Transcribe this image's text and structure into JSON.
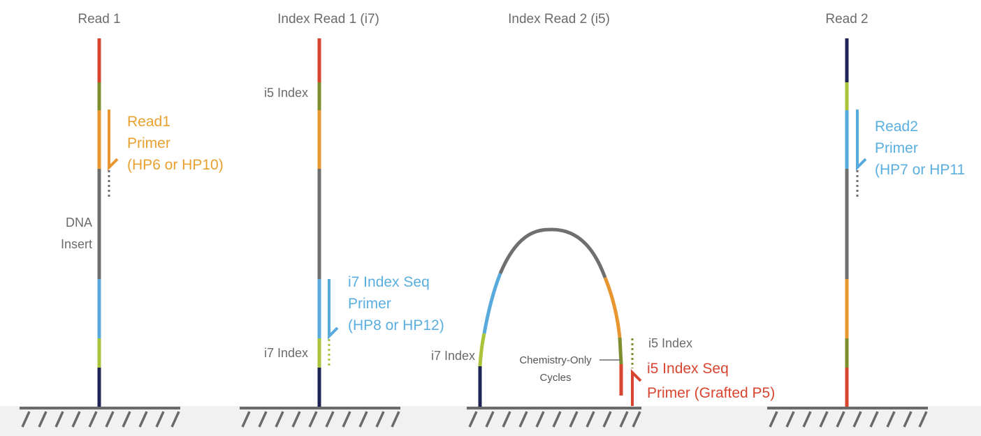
{
  "colors": {
    "red": "#d8452f",
    "olive": "#7d8e2e",
    "orange": "#e8962f",
    "gray": "#6f6f70",
    "blue": "#58aadc",
    "yellow_green": "#a9c33a",
    "navy": "#1e2456",
    "ground": "#6a6a6a",
    "floor": "#f1f1f1"
  },
  "panels": [
    {
      "title": "Read 1",
      "labels": {
        "dna_insert_line1": "DNA",
        "dna_insert_line2": "Insert"
      },
      "primer": {
        "line1": "Read1",
        "line2": "Primer",
        "line3": "(HP6 or HP10)"
      }
    },
    {
      "title": "Index Read 1 (i7)",
      "labels": {
        "i5_index": "i5 Index",
        "i7_index": "i7 Index"
      },
      "primer": {
        "line1": "i7 Index Seq",
        "line2": "Primer",
        "line3": "(HP8 or HP12)"
      }
    },
    {
      "title": "Index Read 2 (i5)",
      "labels": {
        "i7_index": "i7 Index",
        "i5_index": "i5 Index",
        "chemistry_line1": "Chemistry-Only",
        "chemistry_line2": "Cycles"
      },
      "primer": {
        "line1": "i5 Index Seq",
        "line2": "Primer (Grafted P5)"
      }
    },
    {
      "title": "Read 2",
      "primer": {
        "line1": "Read2",
        "line2": "Primer",
        "line3": "(HP7 or HP11"
      }
    }
  ]
}
